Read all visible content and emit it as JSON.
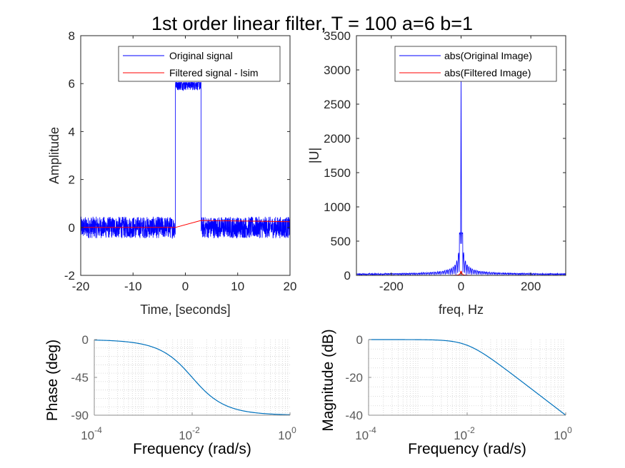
{
  "figure": {
    "title": "1st order linear filter, T = 100 a=6 b=1"
  },
  "chart_data": [
    {
      "type": "line",
      "xlabel": "Time, [seconds]",
      "ylabel": "Amplitude",
      "xlim": [
        -20,
        20
      ],
      "ylim": [
        -2,
        8
      ],
      "xticks": [
        "-20",
        "-10",
        "0",
        "10",
        "20"
      ],
      "yticks": [
        "-2",
        "0",
        "2",
        "4",
        "6",
        "8"
      ],
      "legend_position": "top-right",
      "series": [
        {
          "name": "Original signal",
          "color": "#0000ff",
          "description_points": {
            "x": [
              -20,
              -1.9,
              -1.9,
              3,
              3,
              20
            ],
            "y": [
              0,
              0,
              6,
              6,
              0,
              0
            ]
          },
          "noise_amplitude": 0.45
        },
        {
          "name": "Filtered signal - lsim",
          "color": "#ff0000",
          "x": [
            -20,
            -1.9,
            3,
            20
          ],
          "y": [
            0,
            0,
            0.29,
            0.24
          ]
        }
      ]
    },
    {
      "type": "line",
      "xlabel": "freq, Hz",
      "ylabel": "|U|",
      "xlim": [
        -300,
        300
      ],
      "ylim": [
        0,
        3500
      ],
      "xticks": [
        "-200",
        "0",
        "200"
      ],
      "yticks": [
        "0",
        "500",
        "1000",
        "1500",
        "2000",
        "2500",
        "3000",
        "3500"
      ],
      "legend_position": "top-right",
      "series": [
        {
          "name": "abs(Original Image)",
          "color": "#0000ff",
          "peak": 2950,
          "side_peak": 620,
          "side_offset": 4
        },
        {
          "name": "abs(Filtered Image)",
          "color": "#ff0000",
          "peak": 60
        }
      ]
    },
    {
      "type": "line",
      "xlabel": "Frequency  (rad/s)",
      "ylabel": "Phase (deg)",
      "xscale": "log",
      "xlim": [
        0.0001,
        1
      ],
      "ylim": [
        -90,
        0
      ],
      "xticks": [
        {
          "base": "10",
          "exp": "-4"
        },
        {
          "base": "10",
          "exp": "-2"
        },
        {
          "base": "10",
          "exp": "0"
        }
      ],
      "yticks": [
        "0",
        "-45",
        "-90"
      ],
      "grid": true,
      "series": [
        {
          "color": "#0072bd",
          "corner_frequency": 0.01,
          "quantity": "phase"
        }
      ]
    },
    {
      "type": "line",
      "xlabel": "Frequency  (rad/s)",
      "ylabel": "Magnitude (dB)",
      "xscale": "log",
      "xlim": [
        0.0001,
        1
      ],
      "ylim": [
        -40,
        0
      ],
      "xticks": [
        {
          "base": "10",
          "exp": "-4"
        },
        {
          "base": "10",
          "exp": "-2"
        },
        {
          "base": "10",
          "exp": "0"
        }
      ],
      "yticks": [
        "0",
        "-20",
        "-40"
      ],
      "grid": true,
      "series": [
        {
          "color": "#0072bd",
          "corner_frequency": 0.01,
          "quantity": "magnitude"
        }
      ]
    }
  ]
}
